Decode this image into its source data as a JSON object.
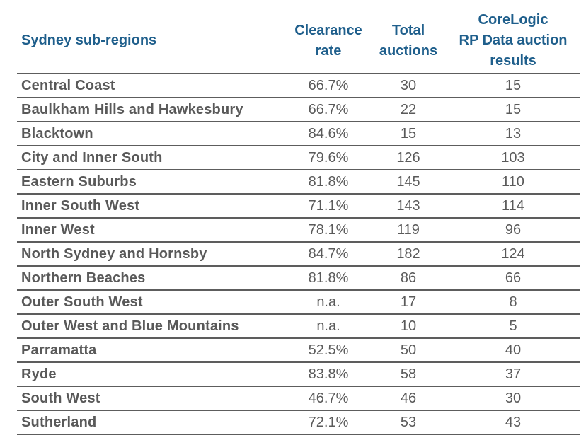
{
  "table": {
    "headers": {
      "region": "Sydney sub-regions",
      "clearance_rate": [
        "Clearance",
        "rate"
      ],
      "total_auctions": [
        "Total",
        "auctions"
      ],
      "corelogic": [
        "CoreLogic",
        "RP Data auction",
        "results"
      ]
    },
    "rows": [
      {
        "region": "Central Coast",
        "rate": "66.7%",
        "total": "30",
        "corelogic": "15"
      },
      {
        "region": "Baulkham Hills and Hawkesbury",
        "rate": "66.7%",
        "total": "22",
        "corelogic": "15"
      },
      {
        "region": "Blacktown",
        "rate": "84.6%",
        "total": "15",
        "corelogic": "13"
      },
      {
        "region": "City and Inner South",
        "rate": "79.6%",
        "total": "126",
        "corelogic": "103"
      },
      {
        "region": "Eastern Suburbs",
        "rate": "81.8%",
        "total": "145",
        "corelogic": "110"
      },
      {
        "region": "Inner South West",
        "rate": "71.1%",
        "total": "143",
        "corelogic": "114"
      },
      {
        "region": "Inner West",
        "rate": "78.1%",
        "total": "119",
        "corelogic": "96"
      },
      {
        "region": "North Sydney and Hornsby",
        "rate": "84.7%",
        "total": "182",
        "corelogic": "124"
      },
      {
        "region": "Northern Beaches",
        "rate": "81.8%",
        "total": "86",
        "corelogic": "66"
      },
      {
        "region": "Outer South West",
        "rate": "n.a.",
        "total": "17",
        "corelogic": "8"
      },
      {
        "region": "Outer West and Blue Mountains",
        "rate": "n.a.",
        "total": "10",
        "corelogic": "5"
      },
      {
        "region": "Parramatta",
        "rate": "52.5%",
        "total": "50",
        "corelogic": "40"
      },
      {
        "region": "Ryde",
        "rate": "83.8%",
        "total": "58",
        "corelogic": "37"
      },
      {
        "region": "South West",
        "rate": "46.7%",
        "total": "46",
        "corelogic": "30"
      },
      {
        "region": "Sutherland",
        "rate": "72.1%",
        "total": "53",
        "corelogic": "43"
      }
    ]
  },
  "colors": {
    "header_text": "#1f5f8c",
    "body_text": "#5a5a5a",
    "rule": "#5d5d5d"
  }
}
